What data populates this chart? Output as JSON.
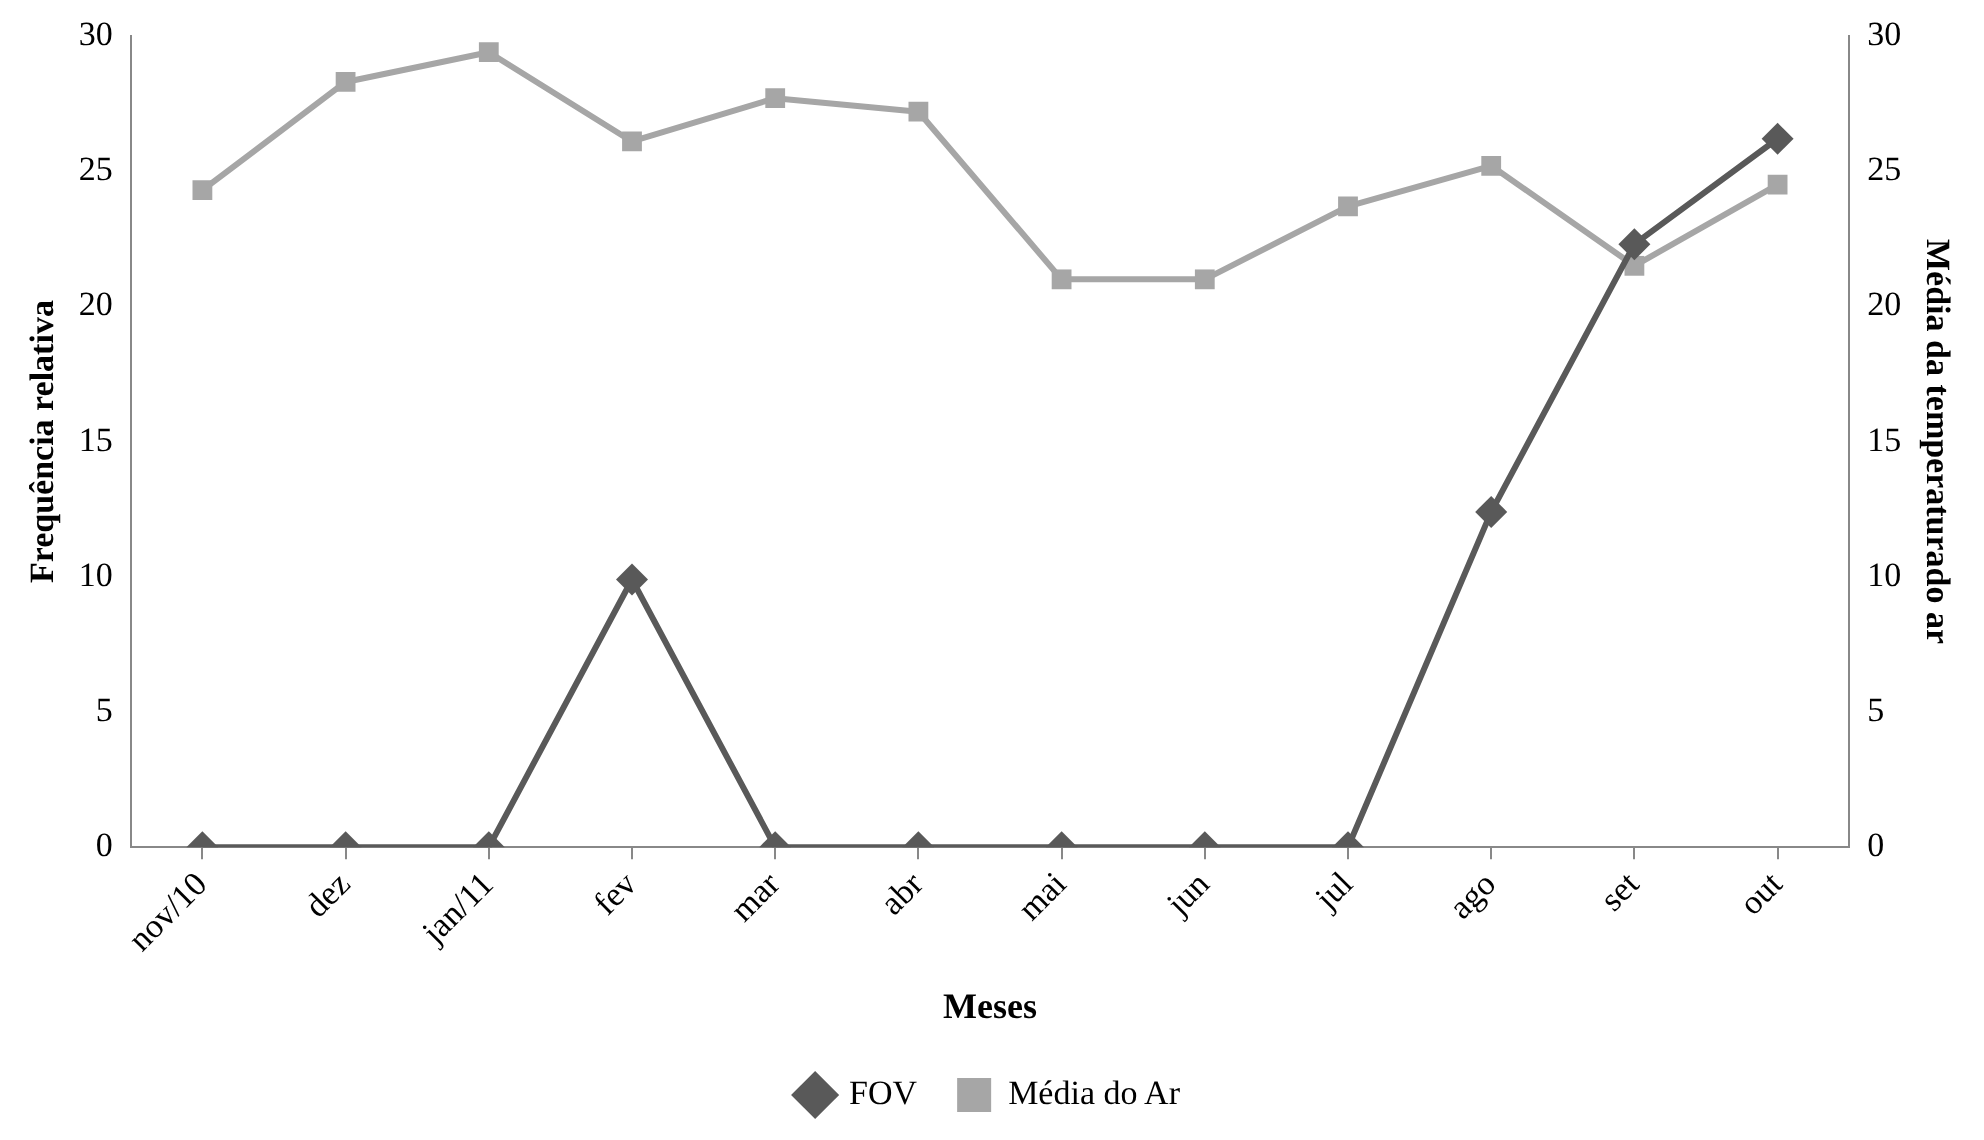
{
  "chart_data": {
    "type": "line",
    "xlabel": "Meses",
    "ylabel": "Frequência relativa",
    "y2label": "Média da temperaturado ar",
    "categories": [
      "nov/10",
      "dez",
      "jan/11",
      "fev",
      "mar",
      "abr",
      "mai",
      "jun",
      "jul",
      "ago",
      "set",
      "out"
    ],
    "series": [
      {
        "name": "FOV",
        "color": "#595959",
        "marker": "diamond",
        "values": [
          0,
          0,
          0,
          9.9,
          0,
          0,
          0,
          0,
          0,
          12.4,
          22.3,
          26.2
        ]
      },
      {
        "name": "Média do Ar",
        "color": "#a6a6a6",
        "marker": "square",
        "values": [
          24.3,
          28.3,
          29.4,
          26.1,
          27.7,
          27.2,
          21.0,
          21.0,
          23.7,
          25.2,
          21.5,
          24.5
        ]
      }
    ],
    "ylim": [
      0,
      30
    ],
    "yticks": [
      0,
      5,
      10,
      15,
      20,
      25,
      30
    ],
    "y2lim": [
      0,
      30
    ],
    "y2ticks": [
      0,
      5,
      10,
      15,
      20,
      25,
      30
    ],
    "grid": false,
    "legend": "bottom"
  }
}
